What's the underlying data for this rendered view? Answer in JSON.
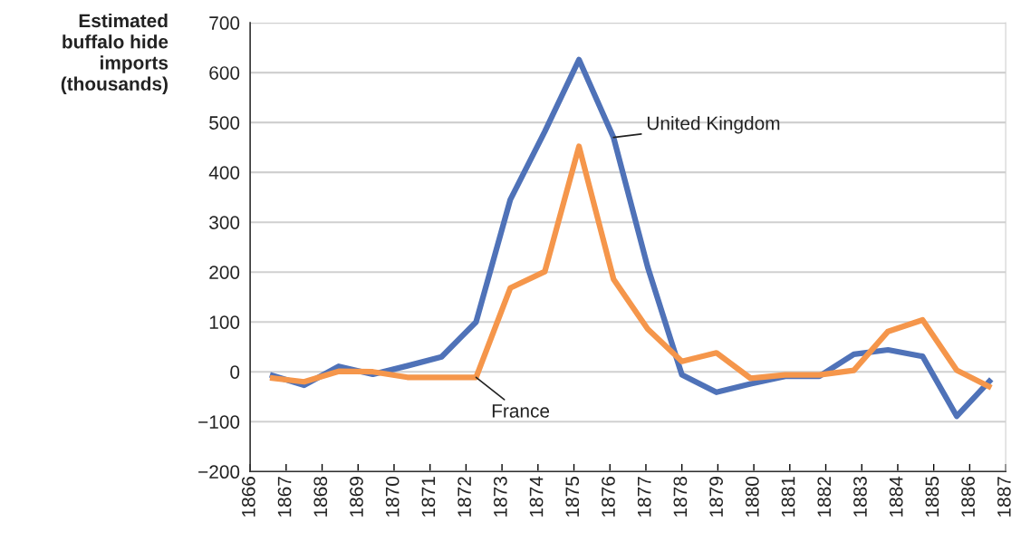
{
  "chart_data": {
    "type": "line",
    "ylabel": "Estimated\nbuffalo hide\nimports\n(thousands)",
    "x": [
      1866.55,
      1867.5,
      1868.46,
      1869.41,
      1870.37,
      1871.32,
      1872.28,
      1873.23,
      1874.19,
      1875.14,
      1876.1,
      1877.05,
      1878.0,
      1878.96,
      1879.91,
      1880.87,
      1881.82,
      1882.78,
      1883.73,
      1884.69,
      1885.64,
      1886.6
    ],
    "series": [
      {
        "name": "United Kingdom",
        "color": "#4f72b8",
        "values": [
          -6,
          -27,
          11,
          -5,
          12,
          30,
          100,
          345,
          482,
          626,
          470,
          210,
          -6,
          -41,
          -24,
          -9,
          -9,
          35,
          44,
          31,
          -89,
          -15
        ]
      },
      {
        "name": "France",
        "color": "#f5964b",
        "values": [
          -12,
          -20,
          1,
          0,
          -11,
          -11,
          -11,
          168,
          201,
          452,
          186,
          86,
          21,
          38,
          -13,
          -6,
          -6,
          3,
          81,
          104,
          3,
          -32
        ]
      }
    ],
    "xlim": [
      1866,
      1887
    ],
    "xticks": [
      1866,
      1867,
      1868,
      1869,
      1870,
      1871,
      1872,
      1873,
      1874,
      1875,
      1876,
      1877,
      1878,
      1879,
      1880,
      1881,
      1882,
      1883,
      1884,
      1885,
      1886,
      1887
    ],
    "ylim": [
      -200,
      700
    ],
    "yticks": [
      {
        "value": -200,
        "label": "−200"
      },
      {
        "value": -100,
        "label": "−100"
      },
      0,
      100,
      200,
      300,
      400,
      500,
      600,
      700
    ],
    "grid": "y",
    "marker": "none",
    "line_style": "solid",
    "legend": false
  }
}
